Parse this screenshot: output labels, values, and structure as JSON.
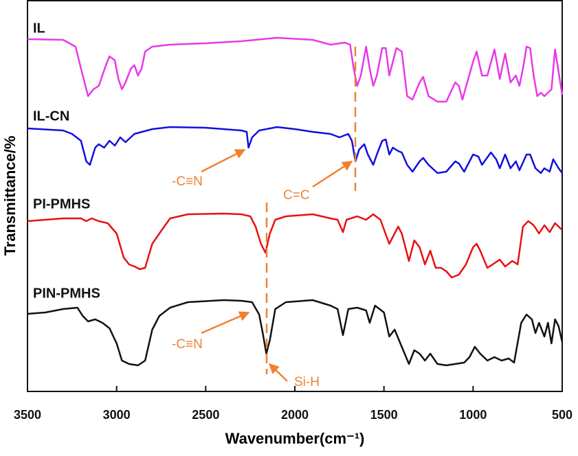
{
  "chart_data": {
    "type": "line",
    "x_label": "Wavenumber(cm⁻¹)",
    "y_label": "Transmittance/%",
    "xlim": [
      3500,
      500
    ],
    "ylim": [
      0,
      57
    ],
    "xticks": [
      3500,
      3000,
      2500,
      2000,
      1500,
      1000,
      500
    ],
    "annotations": [
      "-C≡N",
      "C=C",
      "-C≡N",
      "Si-H"
    ],
    "series": [
      {
        "name": "IL",
        "color": "#e838e8",
        "x": [
          3500,
          3300,
          3230,
          3190,
          3160,
          3130,
          3100,
          3060,
          3040,
          3010,
          2990,
          2970,
          2950,
          2920,
          2900,
          2880,
          2860,
          2840,
          2800,
          2700,
          2500,
          2300,
          2100,
          1900,
          1800,
          1720,
          1690,
          1670,
          1650,
          1630,
          1600,
          1580,
          1560,
          1540,
          1510,
          1490,
          1470,
          1450,
          1430,
          1400,
          1370,
          1340,
          1300,
          1280,
          1250,
          1200,
          1150,
          1100,
          1080,
          1060,
          1000,
          980,
          950,
          920,
          880,
          850,
          820,
          790,
          760,
          740,
          720,
          700,
          680,
          660,
          640,
          620,
          600,
          560,
          540,
          520,
          500
        ],
        "values": [
          51.3,
          51.2,
          50.2,
          46,
          43,
          44,
          44.5,
          47.5,
          48.8,
          48.2,
          45.5,
          44,
          45,
          47,
          47.5,
          46,
          47,
          49.5,
          50.2,
          50.5,
          50.7,
          51,
          51.5,
          51.2,
          50.5,
          50.8,
          50.5,
          47,
          44.5,
          46,
          50.2,
          47,
          44.5,
          46,
          50,
          50,
          46,
          48,
          50,
          49.5,
          43,
          42.5,
          45,
          45.8,
          43,
          42.2,
          42.2,
          45,
          44.5,
          42.5,
          48,
          49.5,
          46,
          46,
          49.8,
          45.5,
          49.2,
          45,
          46,
          44.5,
          47,
          50.2,
          50,
          46,
          43,
          43.5,
          43,
          44,
          49.8,
          46.5,
          43.2
        ]
      },
      {
        "name": "IL-CN",
        "color": "#1010e0",
        "x": [
          3500,
          3300,
          3250,
          3200,
          3170,
          3150,
          3120,
          3100,
          3070,
          3040,
          3010,
          2980,
          2950,
          2900,
          2800,
          2700,
          2500,
          2400,
          2300,
          2270,
          2260,
          2240,
          2200,
          2100,
          2000,
          1900,
          1800,
          1750,
          1700,
          1680,
          1660,
          1640,
          1610,
          1590,
          1560,
          1540,
          1510,
          1490,
          1470,
          1450,
          1420,
          1400,
          1370,
          1340,
          1300,
          1280,
          1250,
          1200,
          1150,
          1100,
          1080,
          1050,
          1000,
          970,
          950,
          900,
          870,
          850,
          820,
          790,
          760,
          740,
          700,
          680,
          650,
          620,
          600,
          570,
          550,
          520,
          500
        ],
        "values": [
          38.3,
          38,
          37.5,
          36.5,
          33.5,
          33,
          35.5,
          36,
          35.5,
          36.5,
          35.8,
          37,
          36.3,
          37.5,
          38.2,
          38.5,
          38.4,
          38.2,
          38,
          37.8,
          35.5,
          37,
          38,
          38.5,
          38.2,
          37.8,
          37.5,
          37,
          37.5,
          36.5,
          33.5,
          35.2,
          36,
          34.5,
          33,
          34.5,
          36.5,
          36.7,
          34.5,
          35.5,
          35,
          34.8,
          33,
          32,
          33.5,
          34,
          33,
          31.8,
          32,
          33.5,
          33.2,
          32,
          34.5,
          34.2,
          33,
          34.8,
          33.8,
          32.5,
          34.5,
          32.5,
          33.5,
          32.2,
          34.5,
          34.5,
          32.5,
          31.8,
          32.5,
          32,
          33.8,
          32.5,
          31.8
        ]
      },
      {
        "name": "PI-PMHS",
        "color": "#e81010",
        "x": [
          3500,
          3300,
          3200,
          3170,
          3140,
          3100,
          3050,
          3000,
          2960,
          2930,
          2900,
          2870,
          2840,
          2800,
          2760,
          2700,
          2600,
          2400,
          2300,
          2250,
          2220,
          2190,
          2165,
          2140,
          2110,
          2050,
          1900,
          1800,
          1760,
          1730,
          1710,
          1650,
          1600,
          1560,
          1520,
          1470,
          1450,
          1420,
          1400,
          1360,
          1330,
          1300,
          1270,
          1240,
          1210,
          1180,
          1150,
          1120,
          1080,
          1040,
          1000,
          980,
          960,
          920,
          890,
          850,
          820,
          780,
          750,
          720,
          690,
          660,
          630,
          600,
          570,
          540,
          500
        ],
        "values": [
          24.8,
          25.2,
          25.2,
          24.8,
          25.2,
          24.8,
          24.5,
          23,
          19.5,
          18.5,
          18.2,
          17.8,
          18,
          21.5,
          23,
          25.2,
          25.8,
          25.9,
          25.8,
          25.5,
          24,
          21.5,
          20.2,
          23,
          25,
          25.5,
          25.8,
          25.2,
          25,
          23.2,
          25,
          25.5,
          25,
          25.8,
          25,
          21.5,
          22.5,
          24,
          23,
          19,
          22,
          21,
          18.5,
          20.5,
          18,
          18,
          17.5,
          16.6,
          17,
          18.5,
          21,
          21.5,
          20.5,
          18,
          18.5,
          19.2,
          18.2,
          19,
          18.5,
          24,
          24.8,
          24.2,
          23,
          24.2,
          23.2,
          24.5,
          23.5
        ]
      },
      {
        "name": "PIN-PMHS",
        "color": "#111111",
        "x": [
          3500,
          3400,
          3300,
          3220,
          3190,
          3160,
          3120,
          3080,
          3040,
          3000,
          2970,
          2930,
          2880,
          2840,
          2800,
          2760,
          2700,
          2600,
          2400,
          2300,
          2240,
          2200,
          2180,
          2160,
          2140,
          2110,
          2050,
          1900,
          1800,
          1760,
          1730,
          1700,
          1650,
          1600,
          1580,
          1550,
          1500,
          1470,
          1440,
          1400,
          1360,
          1330,
          1300,
          1270,
          1240,
          1200,
          1150,
          1100,
          1050,
          1020,
          990,
          960,
          920,
          880,
          840,
          800,
          770,
          730,
          700,
          670,
          650,
          630,
          600,
          580,
          560,
          540,
          520,
          500
        ],
        "values": [
          11.3,
          11.5,
          12,
          12.2,
          11,
          10.2,
          10.5,
          10,
          9.2,
          7,
          4.5,
          4,
          3.8,
          4.5,
          9,
          11,
          12.2,
          13,
          13.3,
          13.2,
          13,
          11.2,
          8.5,
          5.5,
          7.5,
          12,
          13,
          13.3,
          12.5,
          12,
          8.2,
          12,
          12.2,
          11.8,
          10,
          12.5,
          11.5,
          8,
          9,
          6.5,
          4,
          6,
          5.5,
          4.5,
          5.5,
          4,
          3.8,
          4,
          4.2,
          5,
          6.5,
          5.5,
          4.5,
          5,
          4.5,
          4.8,
          4.2,
          10,
          11.2,
          10.5,
          8.5,
          10,
          8,
          10,
          7,
          10.5,
          9.5,
          7.2
        ]
      }
    ]
  }
}
